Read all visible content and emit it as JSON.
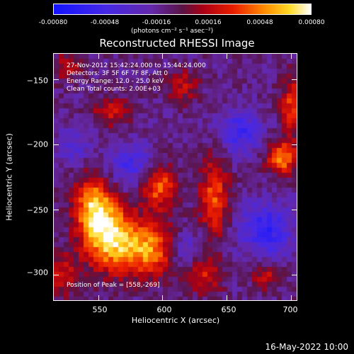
{
  "colorbar": {
    "ticks": [
      "-0.00080",
      "-0.00048",
      "-0.00016",
      "0.00016",
      "0.00048",
      "0.00080"
    ],
    "tick_values": [
      -0.0008,
      -0.00048,
      -0.00016,
      0.00016,
      0.00048,
      0.0008
    ],
    "units": "(photons cm⁻² s⁻¹ asec⁻²)",
    "range": [
      -0.0008,
      0.0008
    ]
  },
  "chart_data": {
    "type": "heatmap",
    "title": "Reconstructed RHESSI Image",
    "xlabel": "Heliocentric X (arcsec)",
    "ylabel": "Heliocentric Y (arcsec)",
    "xlim": [
      515,
      705
    ],
    "ylim": [
      -320,
      -130
    ],
    "xticks": [
      550,
      600,
      650,
      700
    ],
    "xtick_labels": [
      "550",
      "600",
      "650",
      "700"
    ],
    "yticks": [
      -150,
      -200,
      -250,
      -300
    ],
    "ytick_labels": [
      "−150",
      "−200",
      "−250",
      "−300"
    ],
    "annotations": [
      "27-Nov-2012 15:42:24.000 to 15:44:24.000",
      "Detectors: 3F 5F 6F 7F 8F, Att 0",
      "Energy Range: 12.0 - 25.0 keV",
      "Clean     Total counts: 2.00E+03"
    ],
    "peak_label": "Position of Peak = [558,-269]",
    "peak": [
      558,
      -269
    ],
    "sources": [
      {
        "x": 558,
        "y": -269,
        "sx": 14,
        "sy": 18,
        "amp": 0.0008
      },
      {
        "x": 545,
        "y": -245,
        "sx": 10,
        "sy": 16,
        "amp": 0.0006
      },
      {
        "x": 590,
        "y": -280,
        "sx": 16,
        "sy": 14,
        "amp": 0.00065
      },
      {
        "x": 597,
        "y": -232,
        "sx": 9,
        "sy": 12,
        "amp": 0.00055
      },
      {
        "x": 640,
        "y": -240,
        "sx": 8,
        "sy": 22,
        "amp": 0.0005
      },
      {
        "x": 632,
        "y": -300,
        "sx": 10,
        "sy": 10,
        "amp": 0.00035
      },
      {
        "x": 693,
        "y": -210,
        "sx": 9,
        "sy": 9,
        "amp": 0.0006
      },
      {
        "x": 700,
        "y": -170,
        "sx": 6,
        "sy": 16,
        "amp": 0.00045
      },
      {
        "x": 560,
        "y": -175,
        "sx": 10,
        "sy": 8,
        "amp": 0.00035
      },
      {
        "x": 615,
        "y": -155,
        "sx": 9,
        "sy": 9,
        "amp": 0.0003
      },
      {
        "x": 525,
        "y": -140,
        "sx": 8,
        "sy": 8,
        "amp": 0.0003
      },
      {
        "x": 520,
        "y": -300,
        "sx": 10,
        "sy": 12,
        "amp": 0.00035
      },
      {
        "x": 680,
        "y": -300,
        "sx": 8,
        "sy": 8,
        "amp": 0.0003
      },
      {
        "x": 660,
        "y": -190,
        "sx": 12,
        "sy": 12,
        "amp": -0.0004
      },
      {
        "x": 575,
        "y": -215,
        "sx": 12,
        "sy": 12,
        "amp": -0.00035
      },
      {
        "x": 680,
        "y": -265,
        "sx": 14,
        "sy": 14,
        "amp": -0.0005
      },
      {
        "x": 615,
        "y": -280,
        "sx": 10,
        "sy": 10,
        "amp": -0.00035
      },
      {
        "x": 530,
        "y": -200,
        "sx": 10,
        "sy": 10,
        "amp": -0.00025
      }
    ]
  },
  "footer": {
    "timestamp": "16-May-2022 10:00"
  }
}
